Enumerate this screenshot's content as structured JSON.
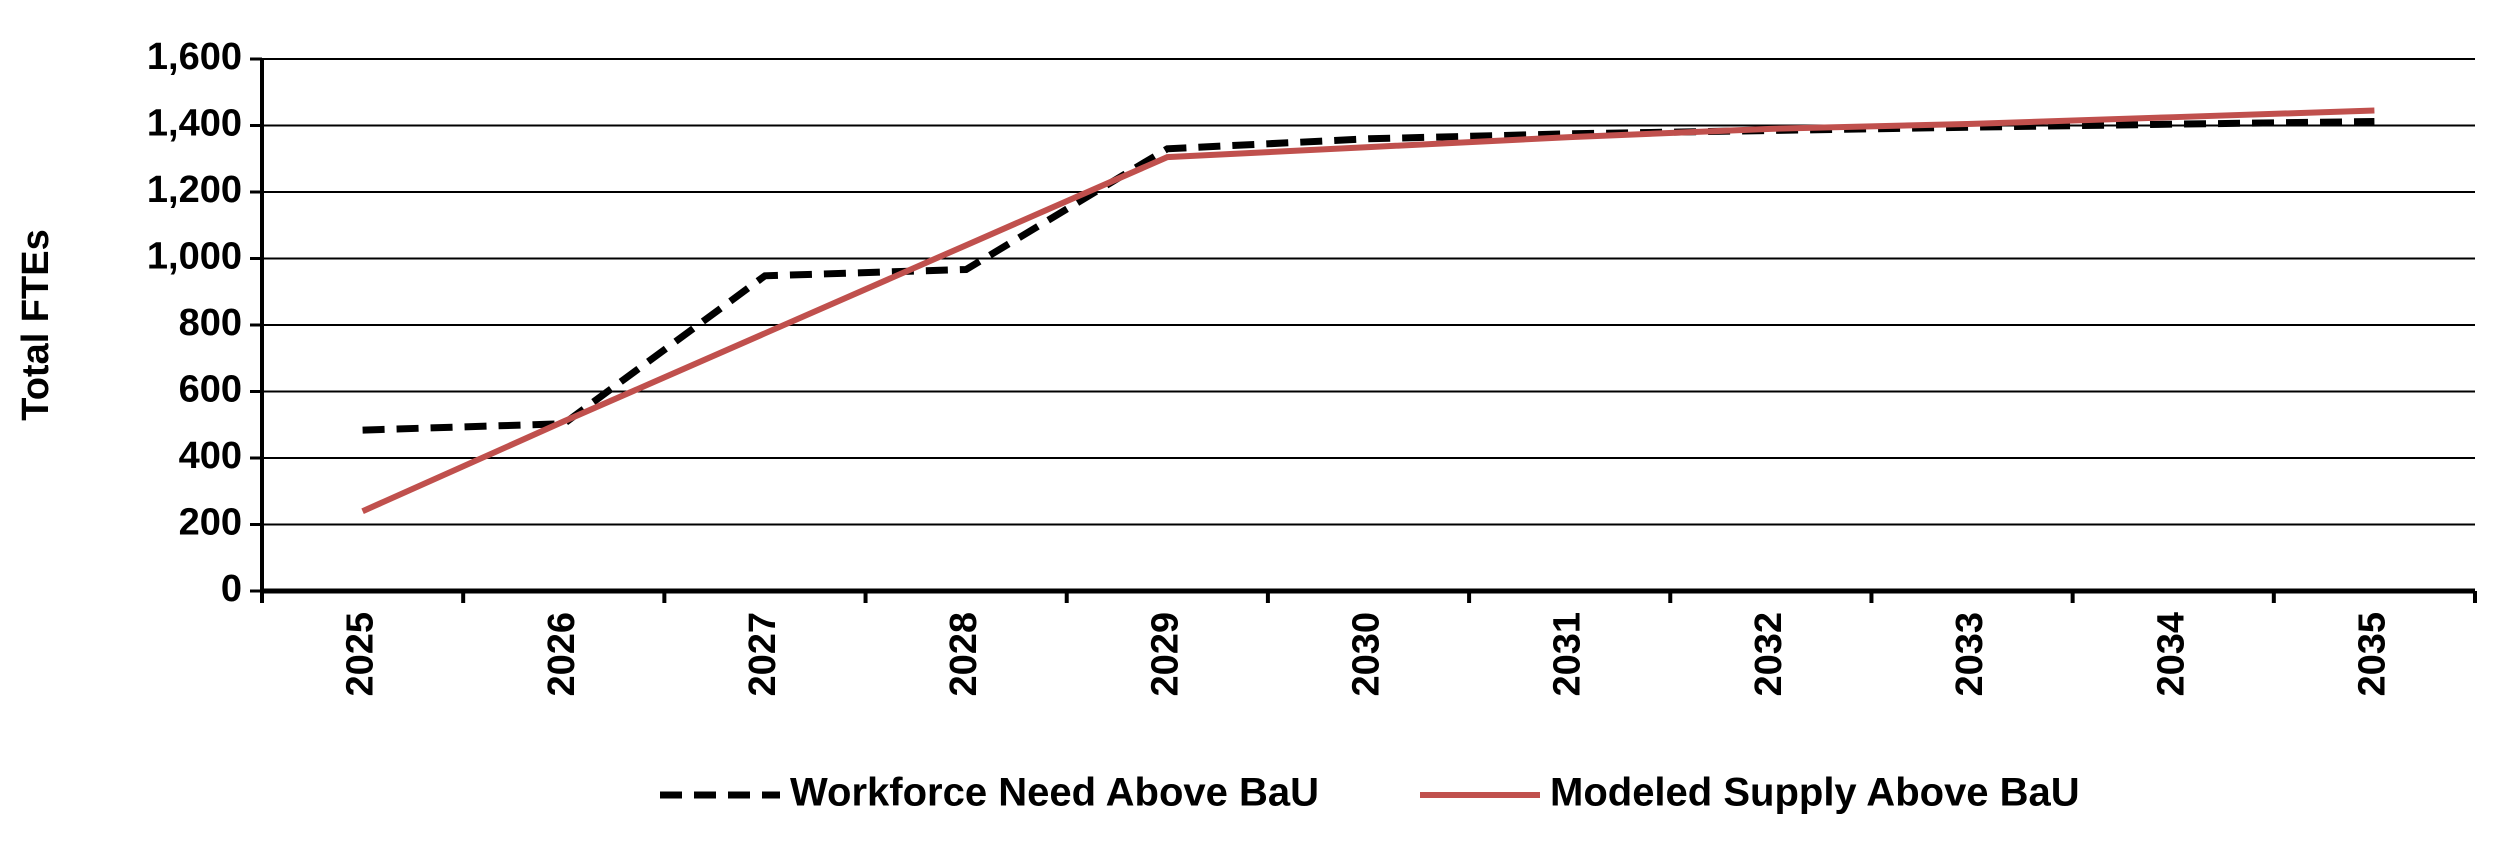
{
  "chart_data": {
    "type": "line",
    "y_label": "Total FTEs",
    "categories": [
      "2025",
      "2026",
      "2027",
      "2028",
      "2029",
      "2030",
      "2031",
      "2032",
      "2033",
      "2034",
      "2035"
    ],
    "series": [
      {
        "name": "Workforce Need Above BaU",
        "color": "#000000",
        "dashed": true,
        "values": [
          484,
          503,
          948,
          967,
          1330,
          1360,
          1375,
          1385,
          1395,
          1404,
          1412
        ]
      },
      {
        "name": "Modeled Supply Above BaU",
        "color": "#c0504d",
        "dashed": false,
        "values": [
          240,
          510,
          775,
          1040,
          1305,
          1335,
          1365,
          1390,
          1405,
          1425,
          1445
        ]
      }
    ],
    "ylim": [
      0,
      1600
    ],
    "yticks": [
      0,
      200,
      400,
      600,
      800,
      {
        "value": 1000,
        "label": "1,000"
      },
      {
        "value": 1200,
        "label": "1,200"
      },
      {
        "value": 1400,
        "label": "1,400"
      },
      {
        "value": 1600,
        "label": "1,600"
      }
    ],
    "grid": true,
    "legend": "bottom"
  }
}
